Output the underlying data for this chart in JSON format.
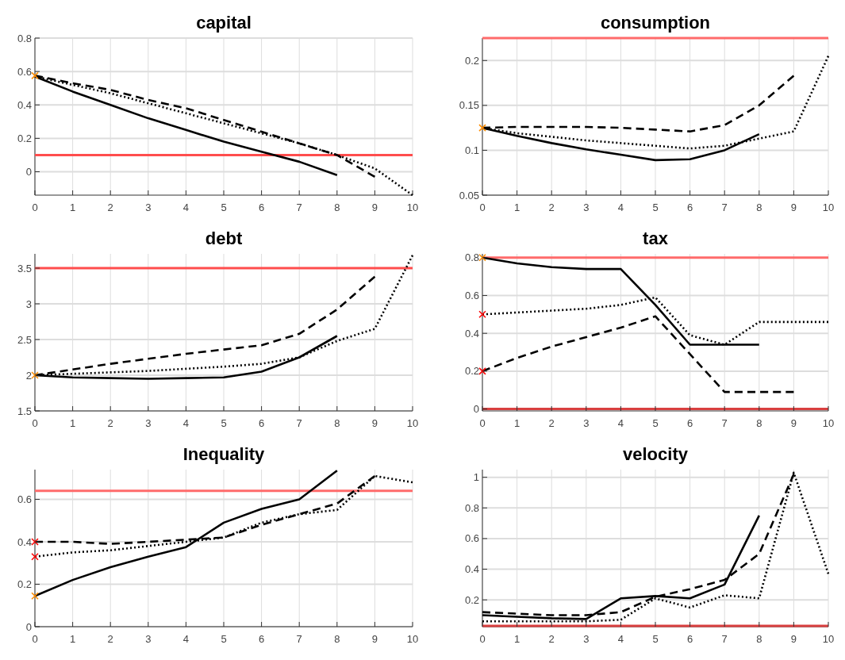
{
  "chart_data": [
    {
      "type": "line",
      "title": "capital",
      "xlim": [
        0,
        10
      ],
      "xticks": [
        0,
        1,
        2,
        3,
        4,
        5,
        6,
        7,
        8,
        9,
        10
      ],
      "ylim": [
        -0.14,
        0.8
      ],
      "yticks": [
        0,
        0.2,
        0.4,
        0.6,
        0.8
      ],
      "grid": true,
      "ref_lines": [
        {
          "axis": "y",
          "value": 0.1,
          "color": "#ff4d4d"
        }
      ],
      "series": [
        {
          "color": "#000000",
          "line_style": "solid",
          "x": [
            0,
            1,
            2,
            3,
            4,
            5,
            6,
            7,
            8
          ],
          "values": [
            0.57,
            0.48,
            0.4,
            0.32,
            0.25,
            0.18,
            0.12,
            0.06,
            -0.02
          ]
        },
        {
          "color": "#000000",
          "line_style": "dashed",
          "x": [
            0,
            1,
            2,
            3,
            4,
            5,
            6,
            7,
            8,
            9
          ],
          "values": [
            0.575,
            0.53,
            0.49,
            0.43,
            0.38,
            0.31,
            0.24,
            0.17,
            0.1,
            -0.03
          ]
        },
        {
          "color": "#000000",
          "line_style": "dotted",
          "x": [
            0,
            1,
            2,
            3,
            4,
            5,
            6,
            7,
            8,
            9,
            10
          ],
          "values": [
            0.57,
            0.52,
            0.47,
            0.41,
            0.35,
            0.29,
            0.23,
            0.17,
            0.1,
            0.02,
            -0.14
          ]
        },
        {
          "type": "scatter",
          "marker": "cross",
          "color": "#ff8c00",
          "x": [
            0
          ],
          "values": [
            0.575
          ]
        }
      ]
    },
    {
      "type": "line",
      "title": "consumption",
      "xlim": [
        0,
        10
      ],
      "xticks": [
        0,
        1,
        2,
        3,
        4,
        5,
        6,
        7,
        8,
        9,
        10
      ],
      "ylim": [
        0.05,
        0.225
      ],
      "yticks": [
        0.05,
        0.1,
        0.15,
        0.2
      ],
      "grid": true,
      "ref_lines": [
        {
          "axis": "y",
          "value": 0.225,
          "color": "#ff6b6b"
        }
      ],
      "series": [
        {
          "color": "#000000",
          "line_style": "solid",
          "x": [
            0,
            1,
            2,
            3,
            4,
            5,
            6,
            7,
            8
          ],
          "values": [
            0.125,
            0.116,
            0.108,
            0.101,
            0.095,
            0.089,
            0.09,
            0.1,
            0.118
          ]
        },
        {
          "color": "#000000",
          "line_style": "dashed",
          "x": [
            0,
            1,
            2,
            3,
            4,
            5,
            6,
            7,
            8,
            9
          ],
          "values": [
            0.125,
            0.126,
            0.126,
            0.126,
            0.125,
            0.123,
            0.121,
            0.128,
            0.15,
            0.183
          ]
        },
        {
          "color": "#000000",
          "line_style": "dotted",
          "x": [
            0,
            1,
            2,
            3,
            4,
            5,
            6,
            7,
            8,
            9,
            10
          ],
          "values": [
            0.125,
            0.119,
            0.115,
            0.111,
            0.108,
            0.105,
            0.102,
            0.105,
            0.113,
            0.121,
            0.205
          ]
        },
        {
          "type": "scatter",
          "marker": "cross",
          "color": "#ff8c00",
          "x": [
            0
          ],
          "values": [
            0.125
          ]
        }
      ]
    },
    {
      "type": "line",
      "title": "debt",
      "xlim": [
        0,
        10
      ],
      "xticks": [
        0,
        1,
        2,
        3,
        4,
        5,
        6,
        7,
        8,
        9,
        10
      ],
      "ylim": [
        1.5,
        3.7
      ],
      "yticks": [
        1.5,
        2,
        2.5,
        3,
        3.5
      ],
      "grid": true,
      "ref_lines": [
        {
          "axis": "y",
          "value": 3.5,
          "color": "#ff4d4d"
        }
      ],
      "series": [
        {
          "color": "#000000",
          "line_style": "solid",
          "x": [
            0,
            1,
            2,
            3,
            4,
            5,
            6,
            7,
            8
          ],
          "values": [
            2.0,
            1.97,
            1.96,
            1.95,
            1.96,
            1.97,
            2.05,
            2.25,
            2.55
          ]
        },
        {
          "color": "#000000",
          "line_style": "dashed",
          "x": [
            0,
            1,
            2,
            3,
            4,
            5,
            6,
            7,
            8,
            9
          ],
          "values": [
            2.0,
            2.08,
            2.16,
            2.23,
            2.3,
            2.36,
            2.42,
            2.58,
            2.92,
            3.38
          ]
        },
        {
          "color": "#000000",
          "line_style": "dotted",
          "x": [
            0,
            1,
            2,
            3,
            4,
            5,
            6,
            7,
            8,
            9,
            10
          ],
          "values": [
            2.0,
            2.02,
            2.04,
            2.06,
            2.09,
            2.12,
            2.16,
            2.25,
            2.48,
            2.65,
            3.68
          ]
        },
        {
          "type": "scatter",
          "marker": "cross",
          "color": "#ff8c00",
          "x": [
            0
          ],
          "values": [
            2.0
          ]
        }
      ]
    },
    {
      "type": "line",
      "title": "tax",
      "xlim": [
        0,
        10
      ],
      "xticks": [
        0,
        1,
        2,
        3,
        4,
        5,
        6,
        7,
        8,
        9,
        10
      ],
      "ylim": [
        -0.01,
        0.82
      ],
      "yticks": [
        0,
        0.2,
        0.4,
        0.6,
        0.8
      ],
      "grid": true,
      "ref_lines": [
        {
          "axis": "y",
          "value": 0.8,
          "color": "#ff6b6b"
        },
        {
          "axis": "y",
          "value": 0,
          "color": "#d94040"
        }
      ],
      "series": [
        {
          "color": "#000000",
          "line_style": "solid",
          "x": [
            0,
            1,
            2,
            3,
            4,
            5,
            6,
            7,
            8
          ],
          "values": [
            0.8,
            0.77,
            0.75,
            0.74,
            0.74,
            0.55,
            0.34,
            0.34,
            0.34
          ]
        },
        {
          "color": "#000000",
          "line_style": "dashed",
          "x": [
            0,
            1,
            2,
            3,
            4,
            5,
            6,
            7,
            8,
            9
          ],
          "values": [
            0.2,
            0.27,
            0.33,
            0.38,
            0.43,
            0.49,
            0.29,
            0.09,
            0.09,
            0.09
          ]
        },
        {
          "color": "#000000",
          "line_style": "dotted",
          "x": [
            0,
            1,
            2,
            3,
            4,
            5,
            6,
            7,
            8,
            9,
            10
          ],
          "values": [
            0.5,
            0.51,
            0.52,
            0.53,
            0.55,
            0.59,
            0.39,
            0.34,
            0.46,
            0.46,
            0.46
          ]
        },
        {
          "type": "scatter",
          "marker": "cross",
          "color": "#ff8c00",
          "x": [
            0
          ],
          "values": [
            0.8
          ]
        },
        {
          "type": "scatter",
          "marker": "cross",
          "color": "#ff0000",
          "x": [
            0,
            0
          ],
          "values": [
            0.5,
            0.2
          ]
        }
      ]
    },
    {
      "type": "line",
      "title": "Inequality",
      "xlim": [
        0,
        10
      ],
      "xticks": [
        0,
        1,
        2,
        3,
        4,
        5,
        6,
        7,
        8,
        9,
        10
      ],
      "ylim": [
        0,
        0.74
      ],
      "yticks": [
        0,
        0.2,
        0.4,
        0.6
      ],
      "grid": true,
      "ref_lines": [
        {
          "axis": "y",
          "value": 0.64,
          "color": "#ff6b6b"
        }
      ],
      "series": [
        {
          "color": "#000000",
          "line_style": "solid",
          "x": [
            0,
            1,
            2,
            3,
            4,
            5,
            6,
            7,
            8
          ],
          "values": [
            0.145,
            0.22,
            0.28,
            0.33,
            0.375,
            0.49,
            0.555,
            0.6,
            0.735
          ]
        },
        {
          "color": "#000000",
          "line_style": "dashed",
          "x": [
            0,
            1,
            2,
            3,
            4,
            5,
            6,
            7,
            8,
            9
          ],
          "values": [
            0.4,
            0.4,
            0.39,
            0.4,
            0.41,
            0.42,
            0.48,
            0.53,
            0.58,
            0.71
          ]
        },
        {
          "color": "#000000",
          "line_style": "dotted",
          "x": [
            0,
            1,
            2,
            3,
            4,
            5,
            6,
            7,
            8,
            9,
            10
          ],
          "values": [
            0.33,
            0.35,
            0.36,
            0.38,
            0.4,
            0.42,
            0.49,
            0.53,
            0.55,
            0.71,
            0.68
          ]
        },
        {
          "type": "scatter",
          "marker": "cross",
          "color": "#ff8c00",
          "x": [
            0
          ],
          "values": [
            0.145
          ]
        },
        {
          "type": "scatter",
          "marker": "cross",
          "color": "#ff0000",
          "x": [
            0,
            0
          ],
          "values": [
            0.4,
            0.33
          ]
        }
      ]
    },
    {
      "type": "line",
      "title": "velocity",
      "xlim": [
        0,
        10
      ],
      "xticks": [
        0,
        1,
        2,
        3,
        4,
        5,
        6,
        7,
        8,
        9,
        10
      ],
      "ylim": [
        0.025,
        1.05
      ],
      "yticks": [
        0.2,
        0.4,
        0.6,
        0.8,
        1
      ],
      "grid": true,
      "ref_lines": [
        {
          "axis": "y",
          "value": 0.03,
          "color": "#d94040"
        }
      ],
      "series": [
        {
          "color": "#000000",
          "line_style": "solid",
          "x": [
            0,
            1,
            2,
            3,
            4,
            5,
            6,
            7,
            8
          ],
          "values": [
            0.1,
            0.09,
            0.08,
            0.075,
            0.21,
            0.225,
            0.21,
            0.3,
            0.75
          ]
        },
        {
          "color": "#000000",
          "line_style": "dashed",
          "x": [
            0,
            1,
            2,
            3,
            4,
            5,
            6,
            7,
            8,
            9
          ],
          "values": [
            0.12,
            0.11,
            0.1,
            0.1,
            0.12,
            0.22,
            0.27,
            0.33,
            0.5,
            1.02
          ]
        },
        {
          "color": "#000000",
          "line_style": "dotted",
          "x": [
            0,
            1,
            2,
            3,
            4,
            5,
            6,
            7,
            8,
            9,
            10
          ],
          "values": [
            0.06,
            0.06,
            0.06,
            0.06,
            0.07,
            0.21,
            0.15,
            0.23,
            0.21,
            1.03,
            0.37
          ]
        }
      ]
    }
  ]
}
